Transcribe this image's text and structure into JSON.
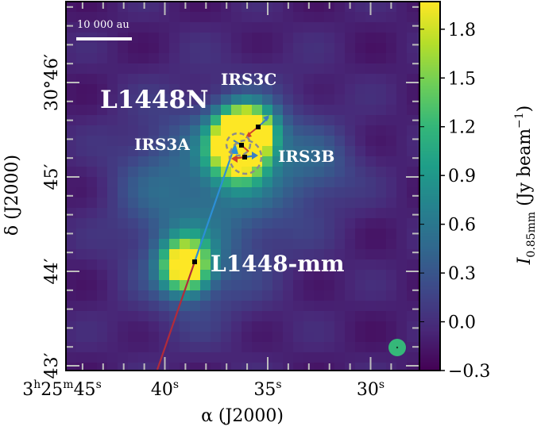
{
  "chart_data": {
    "type": "heatmap",
    "title": "",
    "xlabel": "α (J2000)",
    "ylabel": "δ (J2000)",
    "x_ticks": [
      {
        "value_s": 45,
        "parts": [
          [
            "3",
            ""
          ],
          [
            "h",
            "sup"
          ],
          [
            "25",
            ""
          ],
          [
            "m",
            "sup"
          ],
          [
            "45",
            ""
          ],
          [
            "s",
            "sup"
          ]
        ]
      },
      {
        "value_s": 40,
        "parts": [
          [
            "40",
            ""
          ],
          [
            "s",
            "sup"
          ]
        ]
      },
      {
        "value_s": 35,
        "parts": [
          [
            "35",
            ""
          ],
          [
            "s",
            "sup"
          ]
        ]
      },
      {
        "value_s": 30,
        "parts": [
          [
            "30",
            ""
          ],
          [
            "s",
            "sup"
          ]
        ]
      }
    ],
    "y_ticks": [
      {
        "value_arcmin": 46,
        "label": "30°46′"
      },
      {
        "value_arcmin": 45,
        "label": "45′"
      },
      {
        "value_arcmin": 44,
        "label": "44′"
      },
      {
        "value_arcmin": 43,
        "label": "43′"
      }
    ],
    "colorbar": {
      "label_var": "I",
      "label_sub": "0.85mm",
      "label_unit": " (Jy beam",
      "label_exp": "−1",
      "label_close": ")",
      "ticks": [
        "−0.3",
        "0.0",
        "0.3",
        "0.6",
        "0.9",
        "1.2",
        "1.5",
        "1.8"
      ],
      "tick_values": [
        -0.3,
        0.0,
        0.3,
        0.6,
        0.9,
        1.2,
        1.5,
        1.8
      ],
      "range": [
        -0.3,
        1.97
      ],
      "colormap": [
        "#440154",
        "#482878",
        "#3e4989",
        "#31688e",
        "#26828e",
        "#1f9e89",
        "#35b779",
        "#6ece58",
        "#b5de2b",
        "#fde725"
      ]
    },
    "scalebar_label": "10 000 au",
    "labels": {
      "region": "L1448N",
      "irs3c": "IRS3C",
      "irs3a": "IRS3A",
      "irs3b": "IRS3B",
      "mm": "L1448-mm"
    },
    "sources": [
      {
        "name": "L1448-mm",
        "ra_s": 39.1,
        "dec_arcmin": 44.02
      },
      {
        "name": "IRS3A",
        "ra_s": 36.5,
        "dec_arcmin": 45.33
      },
      {
        "name": "IRS3B",
        "ra_s": 36.3,
        "dec_arcmin": 45.22
      },
      {
        "name": "IRS3C",
        "ra_s": 35.6,
        "dec_arcmin": 45.54
      }
    ],
    "emission_peaks": [
      {
        "ra_s": 36.4,
        "dec_arcmin": 45.3,
        "peak_jy": 2.0
      },
      {
        "ra_s": 36.0,
        "dec_arcmin": 45.5,
        "peak_jy": 1.9
      },
      {
        "ra_s": 39.0,
        "dec_arcmin": 44.06,
        "peak_jy": 1.7
      }
    ],
    "background_jy": -0.1
  }
}
